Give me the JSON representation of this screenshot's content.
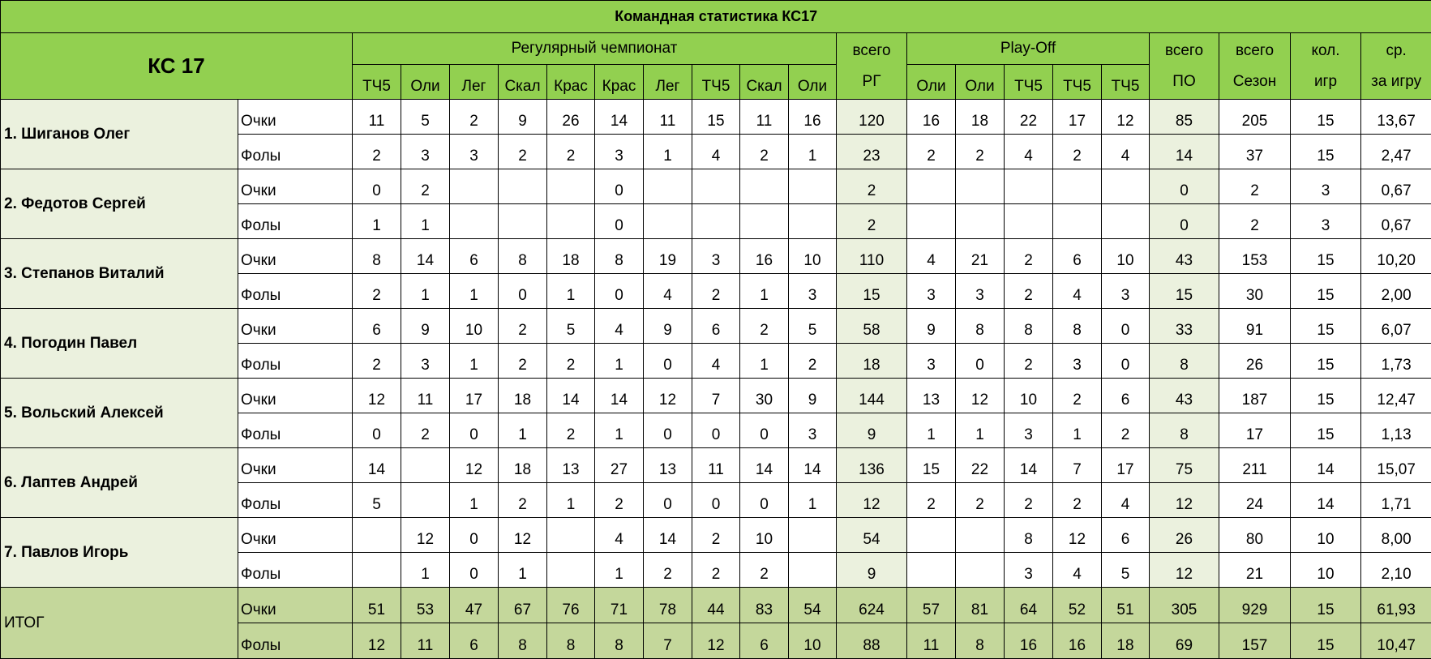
{
  "title": "Командная статистика КС17",
  "header": {
    "team": "КС 17",
    "regular": {
      "title": "Регулярный чемпионат",
      "columns": [
        "ТЧ5",
        "Оли",
        "Лег",
        "Скал",
        "Крас",
        "Крас",
        "Лег",
        "ТЧ5",
        "Скал",
        "Оли"
      ]
    },
    "regular_total": [
      "всего",
      "РГ"
    ],
    "playoff": {
      "title": "Play-Off",
      "columns": [
        "Оли",
        "Оли",
        "ТЧ5",
        "ТЧ5",
        "ТЧ5"
      ]
    },
    "playoff_total": [
      "всего",
      "ПО"
    ],
    "season": [
      "всего",
      "Сезон"
    ],
    "games": [
      "кол.",
      "игр"
    ],
    "average": [
      "ср.",
      "за игру"
    ]
  },
  "players": [
    {
      "name": "1. Шиганов Олег",
      "rows": [
        {
          "label": "Очки",
          "values": [
            11,
            5,
            2,
            9,
            26,
            14,
            11,
            15,
            11,
            16,
            120,
            16,
            18,
            22,
            17,
            12,
            85,
            205,
            15,
            "13,67"
          ]
        },
        {
          "label": "Фолы",
          "values": [
            2,
            3,
            3,
            2,
            2,
            3,
            1,
            4,
            2,
            1,
            23,
            2,
            2,
            4,
            2,
            4,
            14,
            37,
            15,
            "2,47"
          ]
        }
      ]
    },
    {
      "name": "2. Федотов Сергей",
      "rows": [
        {
          "label": "Очки",
          "values": [
            0,
            2,
            null,
            null,
            null,
            0,
            null,
            null,
            null,
            null,
            2,
            null,
            null,
            null,
            null,
            null,
            0,
            2,
            3,
            "0,67"
          ]
        },
        {
          "label": "Фолы",
          "values": [
            1,
            1,
            null,
            null,
            null,
            0,
            null,
            null,
            null,
            null,
            2,
            null,
            null,
            null,
            null,
            null,
            0,
            2,
            3,
            "0,67"
          ]
        }
      ]
    },
    {
      "name": "3. Степанов Виталий",
      "rows": [
        {
          "label": "Очки",
          "values": [
            8,
            14,
            6,
            8,
            18,
            8,
            19,
            3,
            16,
            10,
            110,
            4,
            21,
            2,
            6,
            10,
            43,
            153,
            15,
            "10,20"
          ]
        },
        {
          "label": "Фолы",
          "values": [
            2,
            1,
            1,
            0,
            1,
            0,
            4,
            2,
            1,
            3,
            15,
            3,
            3,
            2,
            4,
            3,
            15,
            30,
            15,
            "2,00"
          ]
        }
      ]
    },
    {
      "name": "4. Погодин Павел",
      "rows": [
        {
          "label": "Очки",
          "values": [
            6,
            9,
            10,
            2,
            5,
            4,
            9,
            6,
            2,
            5,
            58,
            9,
            8,
            8,
            8,
            0,
            33,
            91,
            15,
            "6,07"
          ]
        },
        {
          "label": "Фолы",
          "values": [
            2,
            3,
            1,
            2,
            2,
            1,
            0,
            4,
            1,
            2,
            18,
            3,
            0,
            2,
            3,
            0,
            8,
            26,
            15,
            "1,73"
          ]
        }
      ]
    },
    {
      "name": "5. Вольский Алексей",
      "rows": [
        {
          "label": "Очки",
          "values": [
            12,
            11,
            17,
            18,
            14,
            14,
            12,
            7,
            30,
            9,
            144,
            13,
            12,
            10,
            2,
            6,
            43,
            187,
            15,
            "12,47"
          ]
        },
        {
          "label": "Фолы",
          "values": [
            0,
            2,
            0,
            1,
            2,
            1,
            0,
            0,
            0,
            3,
            9,
            1,
            1,
            3,
            1,
            2,
            8,
            17,
            15,
            "1,13"
          ]
        }
      ]
    },
    {
      "name": "6. Лаптев Андрей",
      "rows": [
        {
          "label": "Очки",
          "values": [
            14,
            null,
            12,
            18,
            13,
            27,
            13,
            11,
            14,
            14,
            136,
            15,
            22,
            14,
            7,
            17,
            75,
            211,
            14,
            "15,07"
          ]
        },
        {
          "label": "Фолы",
          "values": [
            5,
            null,
            1,
            2,
            1,
            2,
            0,
            0,
            0,
            1,
            12,
            2,
            2,
            2,
            2,
            4,
            12,
            24,
            14,
            "1,71"
          ]
        }
      ]
    },
    {
      "name": "7. Павлов Игорь",
      "rows": [
        {
          "label": "Очки",
          "values": [
            null,
            12,
            0,
            12,
            null,
            4,
            14,
            2,
            10,
            null,
            54,
            null,
            null,
            8,
            12,
            6,
            26,
            80,
            10,
            "8,00"
          ]
        },
        {
          "label": "Фолы",
          "values": [
            null,
            1,
            0,
            1,
            null,
            1,
            2,
            2,
            2,
            null,
            9,
            null,
            null,
            3,
            4,
            5,
            12,
            21,
            10,
            "2,10"
          ]
        }
      ]
    }
  ],
  "total": {
    "name": "ИТОГ",
    "rows": [
      {
        "label": "Очки",
        "values": [
          51,
          53,
          47,
          67,
          76,
          71,
          78,
          44,
          83,
          54,
          624,
          57,
          81,
          64,
          52,
          51,
          305,
          929,
          15,
          "61,93"
        ]
      },
      {
        "label": "Фолы",
        "values": [
          12,
          11,
          6,
          8,
          8,
          8,
          7,
          12,
          6,
          10,
          88,
          11,
          8,
          16,
          16,
          18,
          69,
          157,
          15,
          "10,47"
        ]
      }
    ]
  }
}
